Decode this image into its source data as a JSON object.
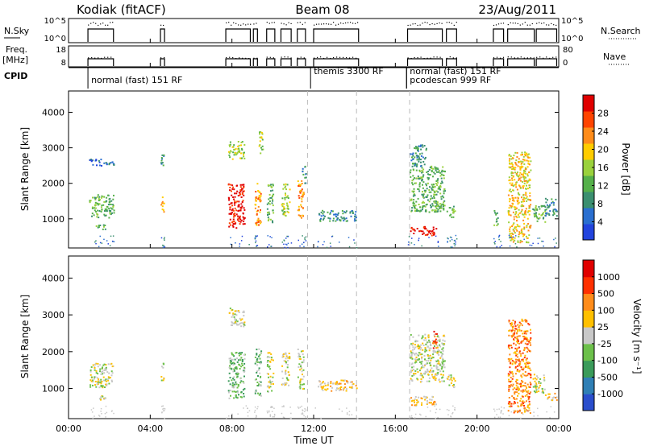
{
  "header": {
    "station": "Kodiak (fitACF)",
    "beam": "Beam 08",
    "date": "23/Aug/2011"
  },
  "panels": {
    "nsky": {
      "label": "N.Sky",
      "ticks": [
        "10^5",
        "10^0"
      ],
      "right_label": "N.Search",
      "right_ticks": [
        "10^5",
        "10^0"
      ]
    },
    "freq": {
      "label_line1": "Freq.",
      "label_line2": "[MHz]",
      "ticks": [
        "18",
        "8"
      ],
      "right_label": "Nave",
      "right_ticks": [
        "80",
        "0"
      ]
    },
    "cpid": {
      "label": "CPID",
      "modes": [
        {
          "name": "normal (fast) 151 RF",
          "start_hour": 0.95
        },
        {
          "name": "themis 3300 RF",
          "start_hour": 11.85
        },
        {
          "name": "normal (fast) 151 RF",
          "start_hour": 16.55
        },
        {
          "name": "pcodescan 999 RF",
          "start_hour": 16.55
        }
      ]
    },
    "power": {
      "ylabel": "Slant Range [km]",
      "cbar_label": "Power [dB]",
      "cbar_ticks": [
        "28",
        "24",
        "20",
        "16",
        "12",
        "8",
        "4"
      ],
      "colors": [
        "#2244dd",
        "#2a6fd0",
        "#3b8f70",
        "#55b04a",
        "#9ad13c",
        "#ffcc00",
        "#ff8c1a",
        "#ff4400",
        "#e00000"
      ]
    },
    "velocity": {
      "ylabel": "Slant Range [km]",
      "cbar_label": "Velocity [m s⁻¹]",
      "cbar_ticks": [
        "1000",
        "500",
        "100",
        "25",
        "-25",
        "-100",
        "-500",
        "-1000"
      ],
      "colors": [
        "#2a4ecc",
        "#2f7fb5",
        "#3a9b5a",
        "#6cc04a",
        "#c8c8c8",
        "#ffc000",
        "#ff8c1a",
        "#ff3000",
        "#e00000"
      ]
    }
  },
  "axis": {
    "xlabel": "Time UT",
    "x_ticks": [
      "00:00",
      "04:00",
      "08:00",
      "12:00",
      "16:00",
      "20:00",
      "00:00"
    ],
    "y_ticks": [
      "1000",
      "2000",
      "3000",
      "4000"
    ]
  },
  "chart_data": {
    "type": "heatmap",
    "xlim": [
      0,
      24
    ],
    "ylim": [
      180,
      4600
    ],
    "dashed_lines_hours": [
      11.7,
      14.1,
      16.7
    ],
    "power_blobs": [
      {
        "t0": 1.0,
        "t1": 2.2,
        "r0": 1050,
        "r1": 1700,
        "level": 3
      },
      {
        "t0": 1.0,
        "t1": 2.2,
        "r0": 2500,
        "r1": 2700,
        "level": 1
      },
      {
        "t0": 1.3,
        "t1": 1.8,
        "r0": 700,
        "r1": 850,
        "level": 3
      },
      {
        "t0": 4.5,
        "t1": 4.65,
        "r0": 1200,
        "r1": 1700,
        "level": 5
      },
      {
        "t0": 4.5,
        "t1": 4.65,
        "r0": 2500,
        "r1": 2900,
        "level": 2
      },
      {
        "t0": 7.8,
        "t1": 8.6,
        "r0": 750,
        "r1": 2000,
        "level": 8
      },
      {
        "t0": 7.8,
        "t1": 8.6,
        "r0": 2700,
        "r1": 3200,
        "level": 4
      },
      {
        "t0": 9.1,
        "t1": 9.4,
        "r0": 800,
        "r1": 2100,
        "level": 6
      },
      {
        "t0": 9.3,
        "t1": 9.5,
        "r0": 2800,
        "r1": 3500,
        "level": 4
      },
      {
        "t0": 9.7,
        "t1": 10.0,
        "r0": 900,
        "r1": 2000,
        "level": 3
      },
      {
        "t0": 10.4,
        "t1": 10.8,
        "r0": 1100,
        "r1": 2000,
        "level": 4
      },
      {
        "t0": 11.2,
        "t1": 11.5,
        "r0": 1000,
        "r1": 2100,
        "level": 6
      },
      {
        "t0": 11.4,
        "t1": 11.6,
        "r0": 2000,
        "r1": 2500,
        "level": 2
      },
      {
        "t0": 12.2,
        "t1": 14.1,
        "r0": 950,
        "r1": 1250,
        "level": 2
      },
      {
        "t0": 16.7,
        "t1": 18.0,
        "r0": 550,
        "r1": 800,
        "level": 8
      },
      {
        "t0": 16.7,
        "t1": 18.4,
        "r0": 1200,
        "r1": 2500,
        "level": 3
      },
      {
        "t0": 16.7,
        "t1": 17.5,
        "r0": 2500,
        "r1": 3100,
        "level": 2
      },
      {
        "t0": 18.5,
        "t1": 18.9,
        "r0": 1050,
        "r1": 1400,
        "level": 3
      },
      {
        "t0": 20.8,
        "t1": 21.0,
        "r0": 800,
        "r1": 1300,
        "level": 3
      },
      {
        "t0": 21.5,
        "t1": 22.6,
        "r0": 350,
        "r1": 2900,
        "level": 5
      },
      {
        "t0": 22.7,
        "t1": 23.3,
        "r0": 900,
        "r1": 1400,
        "level": 3
      },
      {
        "t0": 23.3,
        "t1": 23.9,
        "r0": 1100,
        "r1": 1600,
        "level": 2
      }
    ],
    "velocity_blobs": [
      {
        "t0": 1.0,
        "t1": 2.2,
        "r0": 1050,
        "r1": 1700,
        "level": 4
      },
      {
        "t0": 1.3,
        "t1": 1.8,
        "r0": 700,
        "r1": 850,
        "level": 4
      },
      {
        "t0": 4.5,
        "t1": 4.65,
        "r0": 1200,
        "r1": 1700,
        "level": 4
      },
      {
        "t0": 7.8,
        "t1": 8.6,
        "r0": 750,
        "r1": 2000,
        "level": 3
      },
      {
        "t0": 7.8,
        "t1": 8.6,
        "r0": 2700,
        "r1": 3200,
        "level": 4
      },
      {
        "t0": 9.1,
        "t1": 9.4,
        "r0": 800,
        "r1": 2100,
        "level": 3
      },
      {
        "t0": 9.7,
        "t1": 10.0,
        "r0": 900,
        "r1": 2000,
        "level": 4
      },
      {
        "t0": 10.4,
        "t1": 10.8,
        "r0": 1100,
        "r1": 2000,
        "level": 4
      },
      {
        "t0": 11.2,
        "t1": 11.5,
        "r0": 1000,
        "r1": 2100,
        "level": 4
      },
      {
        "t0": 12.2,
        "t1": 14.1,
        "r0": 950,
        "r1": 1250,
        "level": 5
      },
      {
        "t0": 16.7,
        "t1": 18.0,
        "r0": 550,
        "r1": 800,
        "level": 5
      },
      {
        "t0": 16.7,
        "t1": 18.4,
        "r0": 1200,
        "r1": 2500,
        "level": 4
      },
      {
        "t0": 17.8,
        "t1": 18.0,
        "r0": 2100,
        "r1": 2700,
        "level": 7
      },
      {
        "t0": 18.5,
        "t1": 18.9,
        "r0": 1050,
        "r1": 1400,
        "level": 4
      },
      {
        "t0": 21.5,
        "t1": 22.6,
        "r0": 350,
        "r1": 2900,
        "level": 6
      },
      {
        "t0": 22.7,
        "t1": 23.3,
        "r0": 900,
        "r1": 1400,
        "level": 4
      },
      {
        "t0": 23.3,
        "t1": 23.9,
        "r0": 700,
        "r1": 900,
        "level": 5
      }
    ],
    "operating_segments": [
      [
        0.95,
        2.2
      ],
      [
        4.5,
        4.7
      ],
      [
        7.7,
        8.9
      ],
      [
        9.05,
        9.25
      ],
      [
        9.7,
        10.1
      ],
      [
        10.4,
        10.9
      ],
      [
        11.2,
        11.6
      ],
      [
        12.0,
        14.2
      ],
      [
        16.6,
        18.3
      ],
      [
        18.5,
        19.0
      ],
      [
        20.8,
        21.3
      ],
      [
        21.5,
        22.8
      ],
      [
        22.9,
        23.9
      ]
    ]
  }
}
